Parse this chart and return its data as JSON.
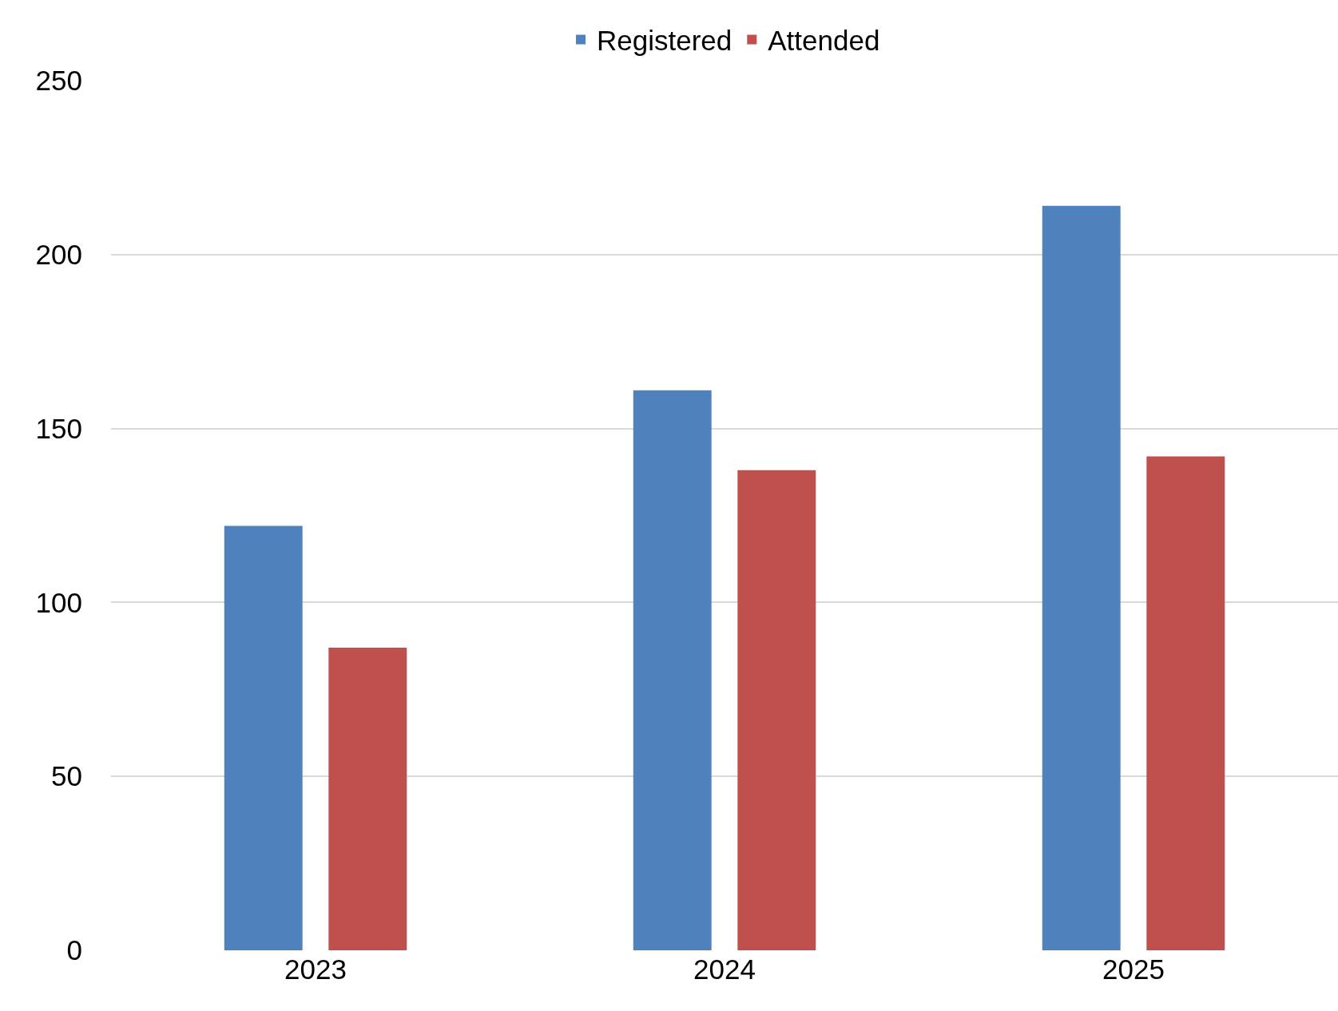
{
  "chart_data": {
    "type": "bar",
    "categories": [
      "2023",
      "2024",
      "2025"
    ],
    "series": [
      {
        "name": "Registered",
        "color": "#4f81bd",
        "values": [
          122,
          161,
          214
        ]
      },
      {
        "name": "Attended",
        "color": "#c0504d",
        "values": [
          87,
          138,
          142
        ]
      }
    ],
    "ylim": [
      0,
      250
    ],
    "yticks": [
      0,
      50,
      100,
      150,
      200,
      250
    ],
    "grid": "y",
    "legend": "top"
  }
}
